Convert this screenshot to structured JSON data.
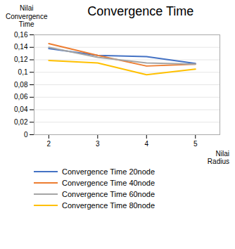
{
  "chart_data": {
    "type": "line",
    "title": "Convergence Time",
    "ylabel": "Nilai\nConvergence\nTime",
    "xlabel": "Nilai\nRadius",
    "x": [
      2,
      3,
      4,
      5
    ],
    "series": [
      {
        "name": "Convergence Time 20node",
        "color": "#4472C4",
        "values": [
          0.138,
          0.127,
          0.125,
          0.114
        ]
      },
      {
        "name": "Convergence Time 40node",
        "color": "#ED7D31",
        "values": [
          0.146,
          0.127,
          0.11,
          0.113
        ]
      },
      {
        "name": "Convergence Time 60node",
        "color": "#A5A5A5",
        "values": [
          0.14,
          0.124,
          0.115,
          0.113
        ]
      },
      {
        "name": "Convergence Time 80node",
        "color": "#FFC000",
        "values": [
          0.119,
          0.115,
          0.096,
          0.105
        ]
      }
    ],
    "xlim": [
      1.7,
      5.5
    ],
    "xticks": [
      2,
      3,
      4,
      5
    ],
    "ylim": [
      0,
      0.16
    ],
    "yticks": [
      0,
      {
        "value": 0.02,
        "label": "0,02"
      },
      {
        "value": 0.04,
        "label": "0,04"
      },
      {
        "value": 0.06,
        "label": "0,06"
      },
      {
        "value": 0.08,
        "label": "0,08"
      },
      {
        "value": 0.1,
        "label": "0,1"
      },
      {
        "value": 0.12,
        "label": "0,12"
      },
      {
        "value": 0.14,
        "label": "0,14"
      },
      {
        "value": 0.16,
        "label": "0,16"
      }
    ],
    "grid": "y",
    "legend": "bottom"
  }
}
